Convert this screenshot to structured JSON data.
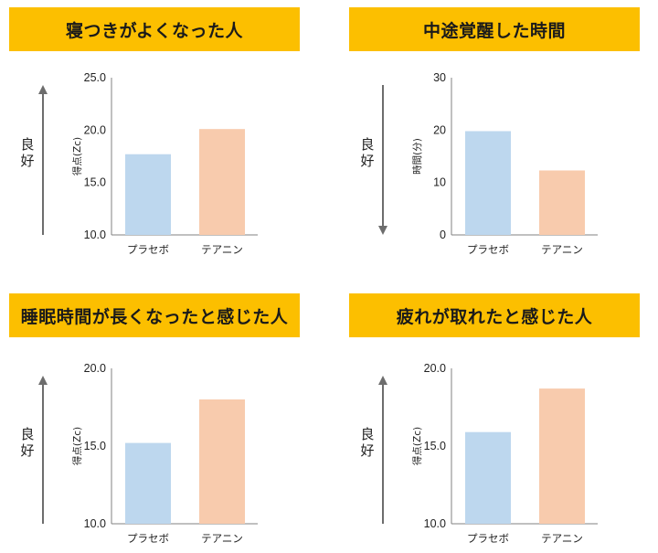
{
  "colors": {
    "title_bg": "#fcbf00",
    "placebo": "#bdd7ee",
    "theanine": "#f8cbad",
    "arrow": "#6d6d6d",
    "axis": "#808080"
  },
  "chart_data": [
    {
      "type": "bar",
      "title": "寝つきがよくなった人",
      "categories": [
        "プラセボ",
        "テアニン"
      ],
      "values": [
        17.7,
        20.1
      ],
      "ylabel": "得点(Zc)",
      "ylim": [
        10,
        25
      ],
      "yticks": [
        "10.0",
        "15.0",
        "20.0",
        "25.0"
      ],
      "grid": false,
      "arrow": {
        "direction": "up",
        "label": "良好"
      }
    },
    {
      "type": "bar",
      "title": "中途覚醒した時間",
      "categories": [
        "プラセボ",
        "テアニン"
      ],
      "values": [
        19.8,
        12.3
      ],
      "ylabel": "時間(分)",
      "ylim": [
        0,
        30
      ],
      "yticks": [
        "0",
        "10",
        "20",
        "30"
      ],
      "grid": false,
      "arrow": {
        "direction": "down",
        "label": "良好"
      }
    },
    {
      "type": "bar",
      "title": "睡眠時間が長くなったと感じた人",
      "categories": [
        "プラセボ",
        "テアニン"
      ],
      "values": [
        15.2,
        18.0
      ],
      "ylabel": "得点(Zc)",
      "ylim": [
        10,
        20
      ],
      "yticks": [
        "10.0",
        "15.0",
        "20.0"
      ],
      "grid": false,
      "arrow": {
        "direction": "up",
        "label": "良好"
      }
    },
    {
      "type": "bar",
      "title": "疲れが取れたと感じた人",
      "categories": [
        "プラセボ",
        "テアニン"
      ],
      "values": [
        15.9,
        18.7
      ],
      "ylabel": "得点(Zc)",
      "ylim": [
        10,
        20
      ],
      "yticks": [
        "10.0",
        "15.0",
        "20.0"
      ],
      "grid": false,
      "arrow": {
        "direction": "up",
        "label": "良好"
      }
    }
  ]
}
